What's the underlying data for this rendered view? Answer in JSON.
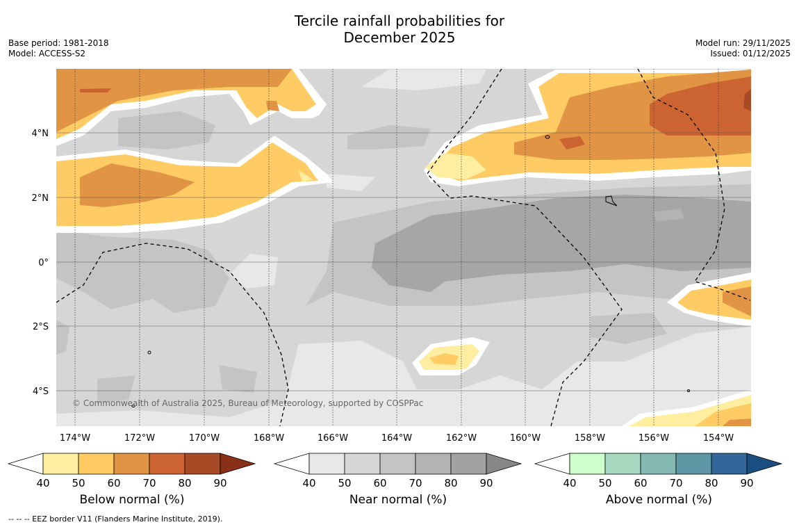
{
  "title": {
    "line1": "Tercile rainfall probabilities for",
    "line2": "December 2025"
  },
  "meta": {
    "base_period": "Base period: 1981-2018",
    "model": "Model: ACCESS-S2",
    "model_run": "Model run: 29/11/2025",
    "issued": "Issued: 01/12/2025"
  },
  "map": {
    "copyright": "© Commonwealth of Australia 2025, Bureau of Meteorology, supported by COSPPac",
    "lon_ticks": [
      "174°W",
      "172°W",
      "170°W",
      "168°W",
      "166°W",
      "164°W",
      "162°W",
      "160°W",
      "158°W",
      "156°W",
      "154°W"
    ],
    "lat_ticks": [
      "4°N",
      "2°N",
      "0°",
      "2°S",
      "4°S"
    ]
  },
  "colorbars": [
    {
      "label": "Below normal (%)",
      "ticks": [
        "40",
        "50",
        "60",
        "70",
        "80",
        "90"
      ],
      "colors": [
        "#ffeea0",
        "#fecb64",
        "#e09444",
        "#cc6432",
        "#a94a26",
        "#8a3019"
      ]
    },
    {
      "label": "Near normal (%)",
      "ticks": [
        "40",
        "50",
        "60",
        "70",
        "80",
        "90"
      ],
      "colors": [
        "#e8e8e8",
        "#d6d6d6",
        "#c4c4c4",
        "#b3b3b3",
        "#a2a2a2",
        "#878787"
      ]
    },
    {
      "label": "Above normal (%)",
      "ticks": [
        "40",
        "50",
        "60",
        "70",
        "80",
        "90"
      ],
      "colors": [
        "#ccffcc",
        "#a6d9c0",
        "#84b8b2",
        "#5e96a4",
        "#336699",
        "#1a4d80"
      ]
    }
  ],
  "footnote": "--  --  -- EEZ border V11 (Flanders Marine Institute, 2019)."
}
